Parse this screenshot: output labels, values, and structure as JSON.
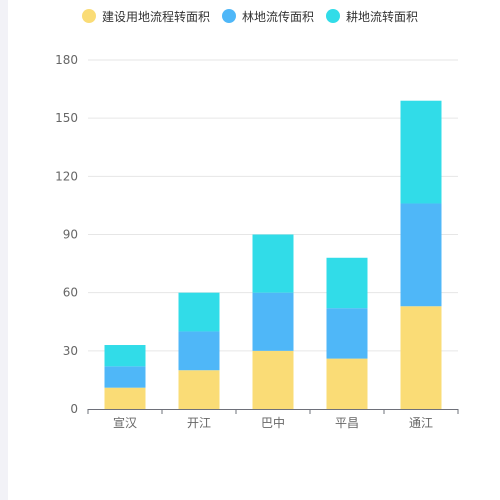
{
  "chart_data": {
    "type": "bar",
    "stacked": true,
    "categories": [
      "宣汉",
      "开江",
      "巴中",
      "平昌",
      "通江"
    ],
    "series": [
      {
        "name": "建设用地流程转面积",
        "color": "#fadc76",
        "values": [
          11,
          20,
          30,
          26,
          53
        ]
      },
      {
        "name": "林地流传面积",
        "color": "#4fb7f8",
        "values": [
          11,
          20,
          30,
          26,
          53
        ]
      },
      {
        "name": "耕地流转面积",
        "color": "#31dce8",
        "values": [
          11,
          20,
          30,
          26,
          53
        ]
      }
    ],
    "title": "",
    "xlabel": "",
    "ylabel": "",
    "ylim": [
      0,
      180
    ],
    "yticks": [
      0,
      30,
      60,
      90,
      120,
      150,
      180
    ],
    "grid": true,
    "legend_position": "top-center"
  }
}
